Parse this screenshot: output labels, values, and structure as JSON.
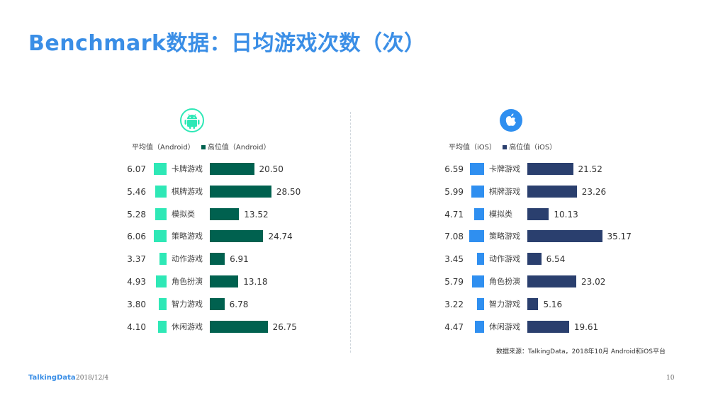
{
  "title": "Benchmark数据：日均游戏次数（次）",
  "source": "数据来源：TalkingData，2018年10月 Android和iOS平台",
  "footer": {
    "brand": "TalkingData",
    "date": "2018/12/4",
    "page": "10"
  },
  "colors": {
    "title": "#3a8ee6",
    "android_avg": "#2ee8b6",
    "android_top": "#00614f",
    "ios_avg": "#2f8ff0",
    "ios_top": "#2a3f6e"
  },
  "chart_data": [
    {
      "type": "bar",
      "platform_icon": "android-icon",
      "categories": [
        "卡牌游戏",
        "棋牌游戏",
        "模拟类",
        "策略游戏",
        "动作游戏",
        "角色扮演",
        "智力游戏",
        "休闲游戏"
      ],
      "series": [
        {
          "name": "平均值（Android）",
          "values": [
            6.07,
            5.46,
            5.28,
            6.06,
            3.37,
            4.93,
            3.8,
            4.1
          ],
          "labels": [
            "6.07",
            "5.46",
            "5.28",
            "6.06",
            "3.37",
            "4.93",
            "3.80",
            "4.10"
          ]
        },
        {
          "name": "高位值（Android）",
          "values": [
            20.5,
            28.5,
            13.52,
            24.74,
            6.91,
            13.18,
            6.78,
            26.75
          ],
          "labels": [
            "20.50",
            "28.50",
            "13.52",
            "24.74",
            "6.91",
            "13.18",
            "6.78",
            "26.75"
          ]
        }
      ]
    },
    {
      "type": "bar",
      "platform_icon": "apple-icon",
      "categories": [
        "卡牌游戏",
        "棋牌游戏",
        "模拟类",
        "策略游戏",
        "动作游戏",
        "角色扮演",
        "智力游戏",
        "休闲游戏"
      ],
      "series": [
        {
          "name": "平均值（iOS）",
          "values": [
            6.59,
            5.99,
            4.71,
            7.08,
            3.45,
            5.79,
            3.22,
            4.47
          ],
          "labels": [
            "6.59",
            "5.99",
            "4.71",
            "7.08",
            "3.45",
            "5.79",
            "3.22",
            "4.47"
          ]
        },
        {
          "name": "高位值（iOS）",
          "values": [
            21.52,
            23.26,
            10.13,
            35.17,
            6.54,
            23.02,
            5.16,
            19.61
          ],
          "labels": [
            "21.52",
            "23.26",
            "10.13",
            "35.17",
            "6.54",
            "23.02",
            "5.16",
            "19.61"
          ]
        }
      ]
    }
  ]
}
